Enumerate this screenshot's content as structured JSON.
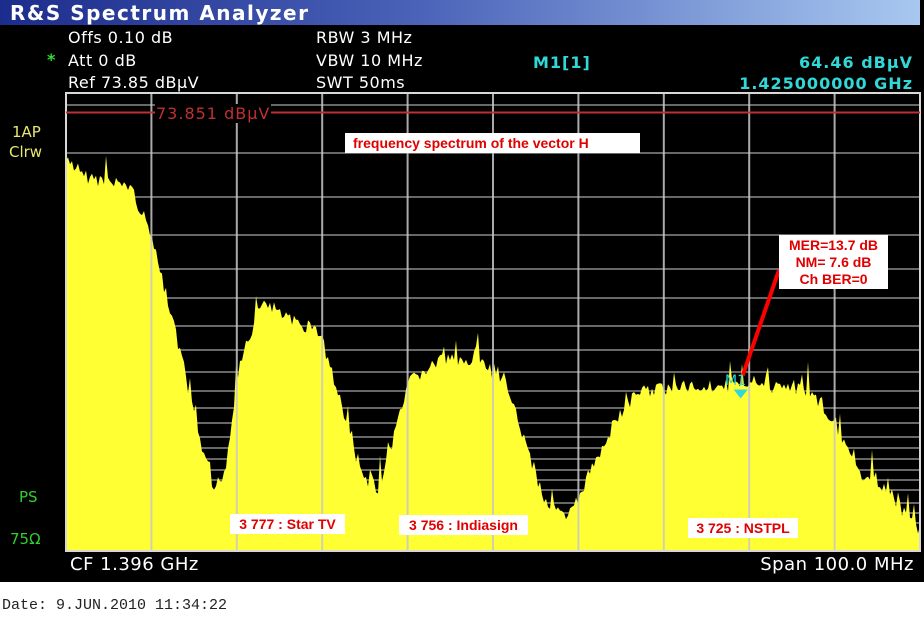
{
  "window": {
    "title": "R&S Spectrum Analyzer"
  },
  "settings": {
    "offset": "Offs 0.10 dB",
    "att_star": "*",
    "attenuation": "Att   0 dB",
    "reference": "Ref  73.85 dBµV",
    "rbw": "RBW  3 MHz",
    "vbw": "VBW  10 MHz",
    "swt": "SWT  50ms"
  },
  "marker_readout": {
    "label": "M1[1]",
    "level": "64.46 dBµV",
    "frequency": "1.425000000 GHz"
  },
  "trace_labels": {
    "detector": "1AP",
    "mode": "Clrw",
    "ps": "PS",
    "impedance": "75Ω"
  },
  "footer": {
    "center_freq": "CF 1.396 GHz",
    "span": "Span 100.0 MHz"
  },
  "date": "Date:  9.JUN.2010   11:34:22",
  "colors": {
    "trace": "#ffff33",
    "ref_line": "#c03030",
    "marker": "#30d8d8",
    "annotation": "#e00000",
    "grid": "#9a9a9a"
  },
  "chart_data": {
    "type": "area",
    "title": "",
    "xlabel": "",
    "ylabel": "",
    "x_unit": "MHz",
    "y_unit": "dBµV",
    "xlim": [
      1346,
      1446
    ],
    "ylim": [
      59.3,
      74.5
    ],
    "grid": true,
    "reference_line": {
      "value": 73.851,
      "label": "73.851 dBµV"
    },
    "marker": {
      "name": "M1",
      "x": 1425,
      "y": 64.46
    },
    "series": [
      {
        "x": [
          1346.0,
          1347.6,
          1353.5,
          1355.8,
          1357.6,
          1359.3,
          1361.1,
          1363.2,
          1364.6,
          1366.4,
          1369.3,
          1372.2,
          1375.7,
          1378.1,
          1380.4,
          1382.2,
          1383.9,
          1386.3,
          1389.8,
          1394.5,
          1398.0,
          1399.7,
          1402.1,
          1404.8,
          1407.4,
          1410.3,
          1413.2,
          1420.2,
          1427.3,
          1433.1,
          1436.0,
          1438.4,
          1440.7,
          1442.5,
          1444.2,
          1446.0
        ],
        "y": [
          72.26,
          71.76,
          71.42,
          69.93,
          67.94,
          65.94,
          63.62,
          61.29,
          61.96,
          65.61,
          67.6,
          66.94,
          66.61,
          64.28,
          61.96,
          61.13,
          62.62,
          64.95,
          65.61,
          65.61,
          64.61,
          62.95,
          60.96,
          60.29,
          61.96,
          63.62,
          64.61,
          64.78,
          64.78,
          64.61,
          63.62,
          61.96,
          61.62,
          61.29,
          60.46,
          59.96
        ]
      }
    ],
    "annotations": [
      {
        "text": "frequency spectrum of the vector H"
      },
      {
        "text": [
          "MER=13.7 dB",
          "NM= 7.6 dB",
          "Ch BER=0"
        ]
      },
      {
        "text": "3 777 : Star TV"
      },
      {
        "text": "3 756 : Indiasign"
      },
      {
        "text": "3 725 : NSTPL"
      }
    ]
  }
}
